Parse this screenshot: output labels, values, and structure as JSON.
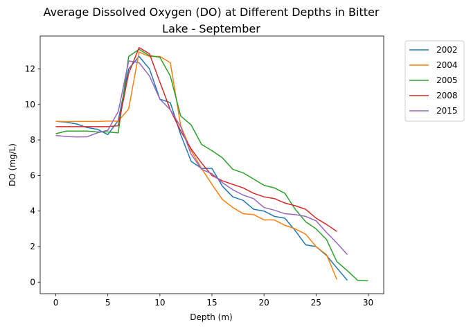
{
  "chart_data": {
    "type": "line",
    "title_line1": "Average Dissolved Oxygen (DO) at Different Depths in Bitter",
    "title_line2": "Lake - September",
    "xlabel": "Depth (m)",
    "ylabel": "DO (mg/L)",
    "xlim": [
      -1.5,
      31.5
    ],
    "ylim": [
      -0.65,
      13.85
    ],
    "xticks": [
      0,
      5,
      10,
      15,
      20,
      25,
      30
    ],
    "yticks": [
      0,
      2,
      4,
      6,
      8,
      10,
      12
    ],
    "grid": false,
    "legend_position": "outside-upper-right",
    "series": [
      {
        "name": "2002",
        "color": "#1f77b4",
        "x": [
          0,
          1,
          2,
          3,
          4,
          5,
          6,
          7,
          8,
          9,
          10,
          11,
          12,
          13,
          14,
          15,
          16,
          17,
          18,
          19,
          20,
          21,
          22,
          23,
          24,
          25,
          26,
          27,
          28
        ],
        "y": [
          9.05,
          9.0,
          8.9,
          8.7,
          8.6,
          8.3,
          9.1,
          12.0,
          12.7,
          12.0,
          10.3,
          10.1,
          8.3,
          6.8,
          6.4,
          6.4,
          5.4,
          4.8,
          4.6,
          4.1,
          4.0,
          3.7,
          3.6,
          2.9,
          2.1,
          2.0,
          1.5,
          0.8,
          0.1
        ]
      },
      {
        "name": "2004",
        "color": "#ff7f0e",
        "x": [
          0,
          1,
          2,
          3,
          4,
          5,
          6,
          7,
          8,
          9,
          10,
          11,
          12,
          13,
          14,
          15,
          16,
          17,
          18,
          19,
          20,
          21,
          22,
          23,
          24,
          25,
          26,
          27
        ],
        "y": [
          9.05,
          9.03,
          9.04,
          9.04,
          9.04,
          9.06,
          9.06,
          9.75,
          12.95,
          12.7,
          12.7,
          12.35,
          8.8,
          7.4,
          6.4,
          5.5,
          4.65,
          4.2,
          3.85,
          3.8,
          3.5,
          3.5,
          3.2,
          3.0,
          2.7,
          2.0,
          1.55,
          0.15
        ]
      },
      {
        "name": "2005",
        "color": "#2ca02c",
        "x": [
          0,
          1,
          2,
          3,
          4,
          5,
          6,
          7,
          8,
          9,
          10,
          11,
          12,
          13,
          14,
          15,
          16,
          17,
          18,
          19,
          20,
          21,
          22,
          23,
          24,
          25,
          26,
          27,
          28,
          29,
          30
        ],
        "y": [
          8.35,
          8.5,
          8.5,
          8.5,
          8.45,
          8.45,
          8.4,
          12.7,
          13.1,
          12.75,
          12.65,
          11.6,
          9.35,
          8.85,
          7.75,
          7.4,
          7.0,
          6.35,
          6.15,
          5.8,
          5.45,
          5.3,
          5.0,
          4.1,
          3.4,
          3.0,
          2.4,
          1.15,
          0.65,
          0.1,
          0.07
        ]
      },
      {
        "name": "2008",
        "color": "#d62728",
        "x": [
          0,
          1,
          2,
          3,
          4,
          5,
          6,
          7,
          8,
          9,
          10,
          11,
          12,
          13,
          14,
          15,
          16,
          17,
          18,
          19,
          20,
          21,
          22,
          23,
          24,
          25,
          26,
          27
        ],
        "y": [
          8.75,
          8.75,
          8.75,
          8.75,
          8.75,
          8.75,
          8.8,
          11.75,
          13.2,
          12.85,
          11.25,
          9.7,
          8.5,
          7.5,
          6.7,
          6.0,
          5.7,
          5.5,
          5.3,
          5.0,
          4.8,
          4.7,
          4.45,
          4.3,
          4.1,
          3.6,
          3.25,
          2.85
        ]
      },
      {
        "name": "2015",
        "color": "#9467bd",
        "x": [
          0,
          1,
          2,
          3,
          4,
          5,
          6,
          7,
          8,
          9,
          10,
          11,
          12,
          13,
          14,
          15,
          16,
          17,
          18,
          19,
          20,
          21,
          22,
          23,
          24,
          25,
          26,
          27,
          28
        ],
        "y": [
          8.25,
          8.2,
          8.17,
          8.18,
          8.4,
          8.55,
          9.6,
          12.45,
          12.35,
          11.6,
          10.3,
          9.7,
          8.75,
          7.2,
          6.35,
          6.1,
          5.6,
          5.2,
          4.9,
          4.7,
          4.2,
          4.05,
          3.85,
          3.8,
          3.7,
          3.45,
          2.8,
          2.2,
          1.55
        ]
      }
    ]
  }
}
